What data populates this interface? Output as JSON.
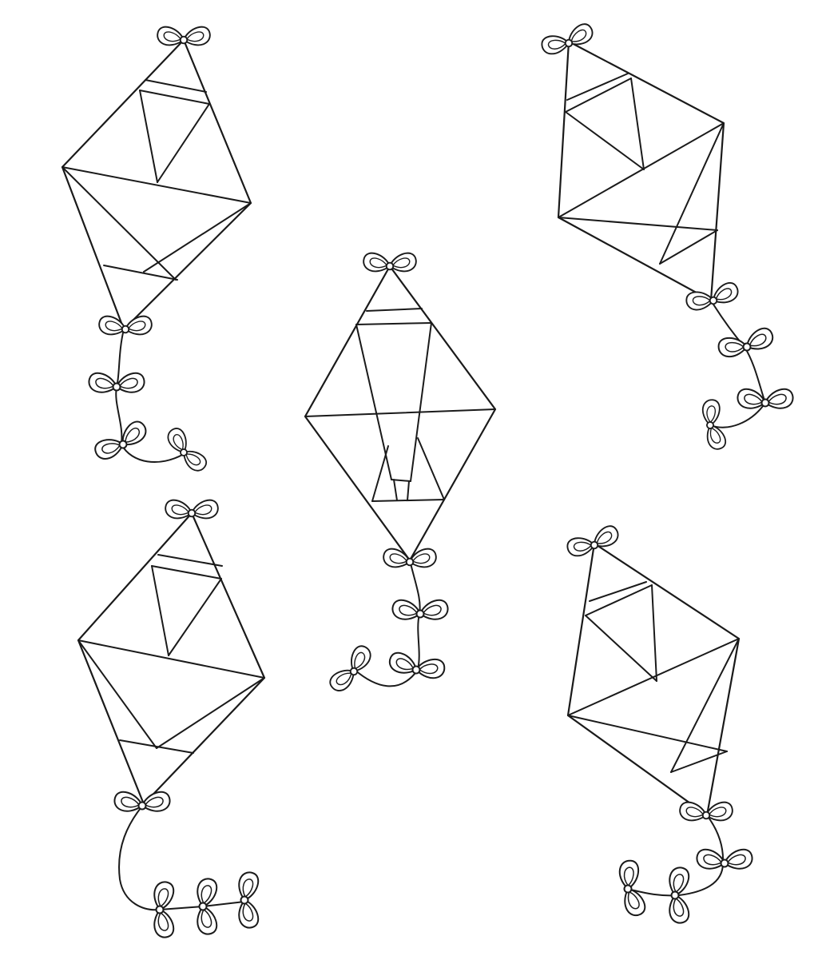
{
  "page": {
    "background": "#ffffff",
    "line_color": "#1a1a1a",
    "kite_count": 5,
    "bow_icon": "bow-icon"
  }
}
